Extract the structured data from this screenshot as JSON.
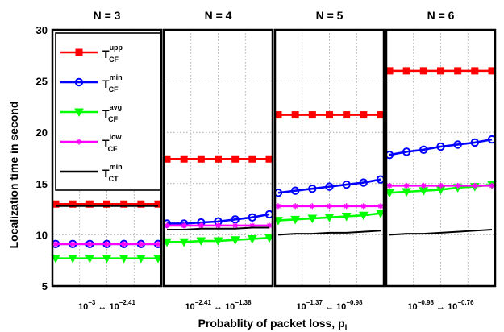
{
  "chart_data": {
    "type": "line",
    "ylabel": "Localization time in second",
    "xlabel": "Probablity of packet loss, p",
    "xlabel_sub": "l",
    "ylim": [
      5,
      30
    ],
    "yticks": [
      "5",
      "10",
      "15",
      "20",
      "25",
      "30"
    ],
    "grid": true,
    "legend_position": "top-left",
    "legend": [
      {
        "main": "T",
        "sup": "upp",
        "sub": "CF",
        "color": "#ff0000",
        "marker": "square"
      },
      {
        "main": "T",
        "sup": "min",
        "sub": "CF",
        "color": "#0000ff",
        "marker": "circle"
      },
      {
        "main": "T",
        "sup": "avg",
        "sub": "CF",
        "color": "#00ff00",
        "marker": "triangle-down"
      },
      {
        "main": "T",
        "sup": "low",
        "sub": "CF",
        "color": "#ff00ff",
        "marker": "star"
      },
      {
        "main": "T",
        "sup": "min",
        "sub": "CT",
        "color": "#000000",
        "marker": "none"
      }
    ],
    "panels": [
      {
        "title": "N = 3",
        "x_left": {
          "base": "10",
          "exp": "−3"
        },
        "x_right": {
          "base": "10",
          "exp": "−2.41"
        },
        "series": [
          {
            "name": "T_CF^upp",
            "values": [
              13.0,
              13.0,
              13.0,
              13.0,
              13.0,
              13.0,
              13.0
            ]
          },
          {
            "name": "T_CF^min",
            "values": [
              9.1,
              9.1,
              9.1,
              9.1,
              9.1,
              9.1,
              9.1
            ]
          },
          {
            "name": "T_CF^avg",
            "values": [
              7.7,
              7.7,
              7.7,
              7.7,
              7.7,
              7.7,
              7.7
            ]
          },
          {
            "name": "T_CF^low",
            "values": [
              9.1,
              9.1,
              9.1,
              9.1,
              9.1,
              9.1,
              9.1
            ]
          },
          {
            "name": "T_CT^min",
            "values": [
              12.8,
              12.8,
              12.8,
              12.8,
              12.8,
              12.8,
              12.8
            ]
          }
        ]
      },
      {
        "title": "N = 4",
        "x_left": {
          "base": "10",
          "exp": "−2.41"
        },
        "x_right": {
          "base": "10",
          "exp": "−1.38"
        },
        "series": [
          {
            "name": "T_CF^upp",
            "values": [
              17.4,
              17.4,
              17.4,
              17.4,
              17.4,
              17.4,
              17.4
            ]
          },
          {
            "name": "T_CF^min",
            "values": [
              11.1,
              11.1,
              11.2,
              11.3,
              11.5,
              11.7,
              12.0
            ]
          },
          {
            "name": "T_CF^avg",
            "values": [
              9.3,
              9.3,
              9.4,
              9.4,
              9.5,
              9.6,
              9.7
            ]
          },
          {
            "name": "T_CF^low",
            "values": [
              10.9,
              10.9,
              10.9,
              10.9,
              10.9,
              10.9,
              10.9
            ]
          },
          {
            "name": "T_CT^min",
            "values": [
              10.5,
              10.5,
              10.6,
              10.6,
              10.6,
              10.7,
              10.7
            ]
          }
        ]
      },
      {
        "title": "N = 5",
        "x_left": {
          "base": "10",
          "exp": "−1.37"
        },
        "x_right": {
          "base": "10",
          "exp": "−0.98"
        },
        "series": [
          {
            "name": "T_CF^upp",
            "values": [
              21.7,
              21.7,
              21.7,
              21.7,
              21.7,
              21.7,
              21.7
            ]
          },
          {
            "name": "T_CF^min",
            "values": [
              14.1,
              14.3,
              14.5,
              14.7,
              14.9,
              15.1,
              15.4
            ]
          },
          {
            "name": "T_CF^avg",
            "values": [
              11.4,
              11.5,
              11.6,
              11.7,
              11.8,
              11.9,
              12.1
            ]
          },
          {
            "name": "T_CF^low",
            "values": [
              12.8,
              12.8,
              12.8,
              12.8,
              12.8,
              12.8,
              12.8
            ]
          },
          {
            "name": "T_CT^min",
            "values": [
              10.0,
              10.1,
              10.1,
              10.2,
              10.2,
              10.3,
              10.4
            ]
          }
        ]
      },
      {
        "title": "N = 6",
        "x_left": {
          "base": "10",
          "exp": "−0.98"
        },
        "x_right": {
          "base": "10",
          "exp": "−0.76"
        },
        "series": [
          {
            "name": "T_CF^upp",
            "values": [
              26.0,
              26.0,
              26.0,
              26.0,
              26.0,
              26.0,
              26.0
            ]
          },
          {
            "name": "T_CF^min",
            "values": [
              17.8,
              18.1,
              18.3,
              18.6,
              18.8,
              19.0,
              19.3
            ]
          },
          {
            "name": "T_CF^avg",
            "values": [
              14.1,
              14.2,
              14.3,
              14.4,
              14.6,
              14.7,
              14.9
            ]
          },
          {
            "name": "T_CF^low",
            "values": [
              14.8,
              14.8,
              14.8,
              14.8,
              14.8,
              14.8,
              14.8
            ]
          },
          {
            "name": "T_CT^min",
            "values": [
              10.0,
              10.1,
              10.1,
              10.2,
              10.3,
              10.4,
              10.5
            ]
          }
        ]
      }
    ]
  }
}
